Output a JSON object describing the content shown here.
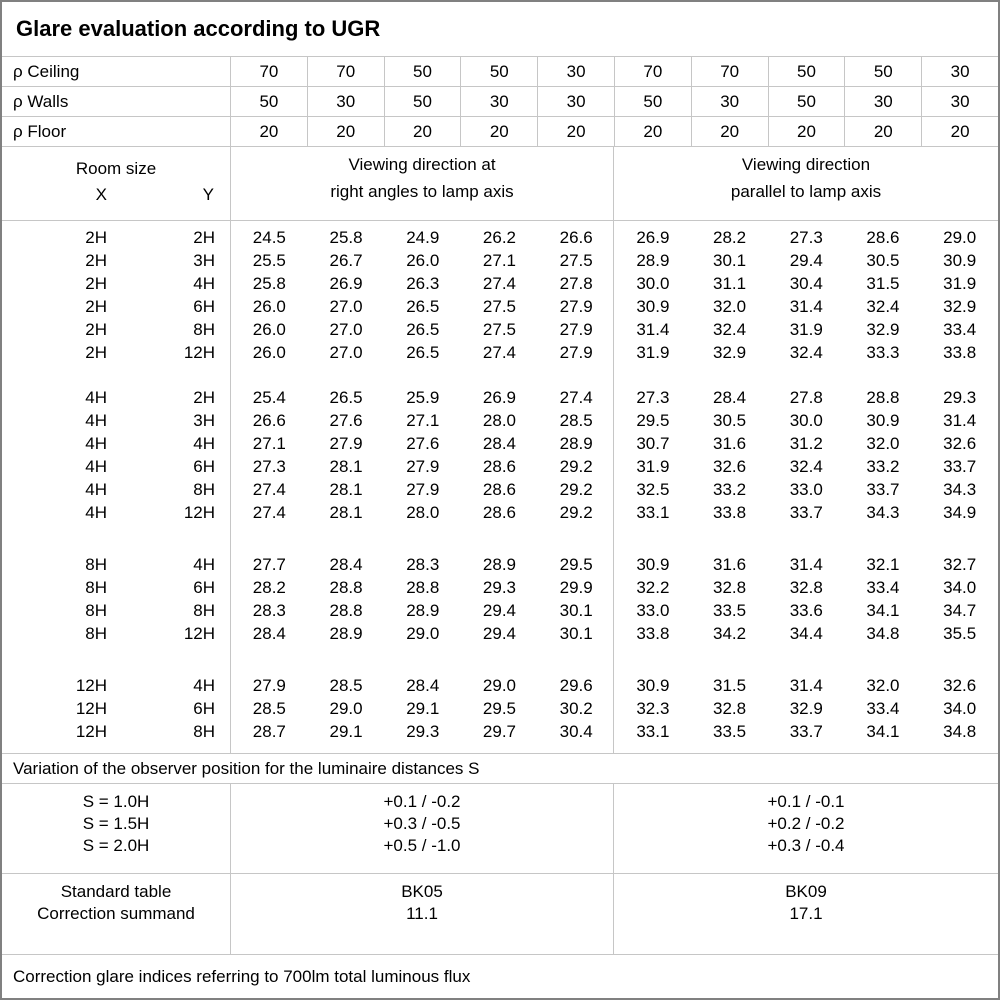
{
  "title": "Glare evaluation according to UGR",
  "reflectance_rows": [
    {
      "label": "ρ Ceiling",
      "values": [
        "70",
        "70",
        "50",
        "50",
        "30",
        "70",
        "70",
        "50",
        "50",
        "30"
      ]
    },
    {
      "label": "ρ Walls",
      "values": [
        "50",
        "30",
        "50",
        "30",
        "30",
        "50",
        "30",
        "50",
        "30",
        "30"
      ]
    },
    {
      "label": "ρ Floor",
      "values": [
        "20",
        "20",
        "20",
        "20",
        "20",
        "20",
        "20",
        "20",
        "20",
        "20"
      ]
    }
  ],
  "header": {
    "room_size": "Room size",
    "x": "X",
    "y": "Y",
    "group1_line1": "Viewing direction at",
    "group1_line2": "right angles to lamp axis",
    "group2_line1": "Viewing direction",
    "group2_line2": "parallel to lamp axis"
  },
  "blocks": [
    {
      "rows": [
        {
          "x": "2H",
          "y": "2H",
          "right_angles": [
            "24.5",
            "25.8",
            "24.9",
            "26.2",
            "26.6"
          ],
          "parallel": [
            "26.9",
            "28.2",
            "27.3",
            "28.6",
            "29.0"
          ]
        },
        {
          "x": "2H",
          "y": "3H",
          "right_angles": [
            "25.5",
            "26.7",
            "26.0",
            "27.1",
            "27.5"
          ],
          "parallel": [
            "28.9",
            "30.1",
            "29.4",
            "30.5",
            "30.9"
          ]
        },
        {
          "x": "2H",
          "y": "4H",
          "right_angles": [
            "25.8",
            "26.9",
            "26.3",
            "27.4",
            "27.8"
          ],
          "parallel": [
            "30.0",
            "31.1",
            "30.4",
            "31.5",
            "31.9"
          ]
        },
        {
          "x": "2H",
          "y": "6H",
          "right_angles": [
            "26.0",
            "27.0",
            "26.5",
            "27.5",
            "27.9"
          ],
          "parallel": [
            "30.9",
            "32.0",
            "31.4",
            "32.4",
            "32.9"
          ]
        },
        {
          "x": "2H",
          "y": "8H",
          "right_angles": [
            "26.0",
            "27.0",
            "26.5",
            "27.5",
            "27.9"
          ],
          "parallel": [
            "31.4",
            "32.4",
            "31.9",
            "32.9",
            "33.4"
          ]
        },
        {
          "x": "2H",
          "y": "12H",
          "right_angles": [
            "26.0",
            "27.0",
            "26.5",
            "27.4",
            "27.9"
          ],
          "parallel": [
            "31.9",
            "32.9",
            "32.4",
            "33.3",
            "33.8"
          ]
        }
      ]
    },
    {
      "rows": [
        {
          "x": "4H",
          "y": "2H",
          "right_angles": [
            "25.4",
            "26.5",
            "25.9",
            "26.9",
            "27.4"
          ],
          "parallel": [
            "27.3",
            "28.4",
            "27.8",
            "28.8",
            "29.3"
          ]
        },
        {
          "x": "4H",
          "y": "3H",
          "right_angles": [
            "26.6",
            "27.6",
            "27.1",
            "28.0",
            "28.5"
          ],
          "parallel": [
            "29.5",
            "30.5",
            "30.0",
            "30.9",
            "31.4"
          ]
        },
        {
          "x": "4H",
          "y": "4H",
          "right_angles": [
            "27.1",
            "27.9",
            "27.6",
            "28.4",
            "28.9"
          ],
          "parallel": [
            "30.7",
            "31.6",
            "31.2",
            "32.0",
            "32.6"
          ]
        },
        {
          "x": "4H",
          "y": "6H",
          "right_angles": [
            "27.3",
            "28.1",
            "27.9",
            "28.6",
            "29.2"
          ],
          "parallel": [
            "31.9",
            "32.6",
            "32.4",
            "33.2",
            "33.7"
          ]
        },
        {
          "x": "4H",
          "y": "8H",
          "right_angles": [
            "27.4",
            "28.1",
            "27.9",
            "28.6",
            "29.2"
          ],
          "parallel": [
            "32.5",
            "33.2",
            "33.0",
            "33.7",
            "34.3"
          ]
        },
        {
          "x": "4H",
          "y": "12H",
          "right_angles": [
            "27.4",
            "28.1",
            "28.0",
            "28.6",
            "29.2"
          ],
          "parallel": [
            "33.1",
            "33.8",
            "33.7",
            "34.3",
            "34.9"
          ]
        }
      ]
    },
    {
      "rows": [
        {
          "x": "8H",
          "y": "4H",
          "right_angles": [
            "27.7",
            "28.4",
            "28.3",
            "28.9",
            "29.5"
          ],
          "parallel": [
            "30.9",
            "31.6",
            "31.4",
            "32.1",
            "32.7"
          ]
        },
        {
          "x": "8H",
          "y": "6H",
          "right_angles": [
            "28.2",
            "28.8",
            "28.8",
            "29.3",
            "29.9"
          ],
          "parallel": [
            "32.2",
            "32.8",
            "32.8",
            "33.4",
            "34.0"
          ]
        },
        {
          "x": "8H",
          "y": "8H",
          "right_angles": [
            "28.3",
            "28.8",
            "28.9",
            "29.4",
            "30.1"
          ],
          "parallel": [
            "33.0",
            "33.5",
            "33.6",
            "34.1",
            "34.7"
          ]
        },
        {
          "x": "8H",
          "y": "12H",
          "right_angles": [
            "28.4",
            "28.9",
            "29.0",
            "29.4",
            "30.1"
          ],
          "parallel": [
            "33.8",
            "34.2",
            "34.4",
            "34.8",
            "35.5"
          ]
        }
      ]
    },
    {
      "rows": [
        {
          "x": "12H",
          "y": "4H",
          "right_angles": [
            "27.9",
            "28.5",
            "28.4",
            "29.0",
            "29.6"
          ],
          "parallel": [
            "30.9",
            "31.5",
            "31.4",
            "32.0",
            "32.6"
          ]
        },
        {
          "x": "12H",
          "y": "6H",
          "right_angles": [
            "28.5",
            "29.0",
            "29.1",
            "29.5",
            "30.2"
          ],
          "parallel": [
            "32.3",
            "32.8",
            "32.9",
            "33.4",
            "34.0"
          ]
        },
        {
          "x": "12H",
          "y": "8H",
          "right_angles": [
            "28.7",
            "29.1",
            "29.3",
            "29.7",
            "30.4"
          ],
          "parallel": [
            "33.1",
            "33.5",
            "33.7",
            "34.1",
            "34.8"
          ]
        }
      ]
    }
  ],
  "variation_note": "Variation of the observer position for the luminaire distances S",
  "s_section": {
    "labels": [
      "S = 1.0H",
      "S = 1.5H",
      "S = 2.0H"
    ],
    "right_angles": [
      "+0.1 / -0.2",
      "+0.3 / -0.5",
      "+0.5 / -1.0"
    ],
    "parallel": [
      "+0.1 / -0.1",
      "+0.2 / -0.2",
      "+0.3 / -0.4"
    ]
  },
  "standard_section": {
    "labels": [
      "Standard table",
      "Correction summand"
    ],
    "right_angles": [
      "BK05",
      "11.1"
    ],
    "parallel": [
      "BK09",
      "17.1"
    ]
  },
  "footer_note": "Correction glare indices referring to 700lm total luminous flux"
}
